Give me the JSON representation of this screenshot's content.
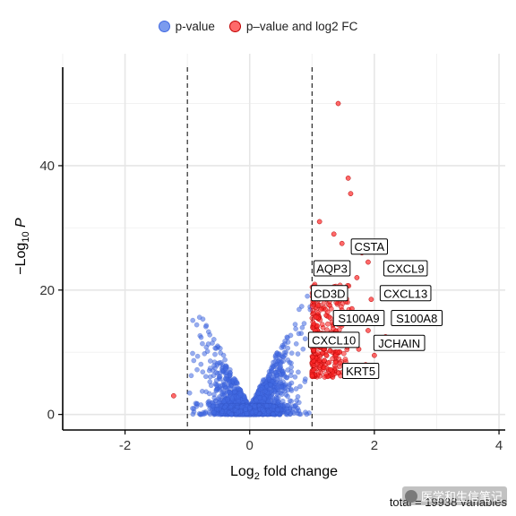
{
  "chart_data": {
    "type": "scatter",
    "title": "",
    "xlabel": "Log2 fold change",
    "ylabel": "-Log10 P",
    "xlim": [
      -3,
      4.1
    ],
    "ylim": [
      -2.5,
      58
    ],
    "x_ticks": [
      -2,
      0,
      2,
      4
    ],
    "y_ticks": [
      0,
      20,
      40
    ],
    "x_tick_labels": [
      "-2",
      "0",
      "2",
      "4"
    ],
    "y_tick_labels": [
      "0",
      "20",
      "40"
    ],
    "fc_cutoff": [
      -1,
      1
    ],
    "grid": true,
    "legend": {
      "position": "top",
      "entries": [
        {
          "label": "p-value",
          "color": "#4169E1"
        },
        {
          "label": "p–value and log2 FC",
          "color": "#FF0000"
        }
      ]
    },
    "series": [
      {
        "name": "p-value",
        "color": "#4169E1",
        "note": "dense cloud of ~19,900 non-significant / low-FC variables forming a V-shape centred at log2FC 0, p up to ~21"
      },
      {
        "name": "p–value and log2 FC",
        "color": "#FF0000",
        "points": [
          {
            "x": 1.42,
            "y": 50.0
          },
          {
            "x": 1.58,
            "y": 38.0
          },
          {
            "x": 1.62,
            "y": 35.5
          },
          {
            "x": 1.12,
            "y": 31.0
          },
          {
            "x": -1.22,
            "y": 3.0
          },
          {
            "x": 1.35,
            "y": 29.0
          },
          {
            "x": 1.48,
            "y": 27.5
          },
          {
            "x": 1.8,
            "y": 26.0
          },
          {
            "x": 1.9,
            "y": 24.5
          },
          {
            "x": 2.3,
            "y": 23.5
          },
          {
            "x": 2.15,
            "y": 20.0
          },
          {
            "x": 1.72,
            "y": 22.0
          },
          {
            "x": 1.95,
            "y": 18.5
          },
          {
            "x": 1.64,
            "y": 17.0
          },
          {
            "x": 2.08,
            "y": 16.0
          },
          {
            "x": 1.9,
            "y": 13.5
          },
          {
            "x": 2.18,
            "y": 12.5
          },
          {
            "x": 1.75,
            "y": 10.5
          },
          {
            "x": 2.0,
            "y": 9.5
          },
          {
            "x": 1.86,
            "y": 8.0
          }
        ]
      }
    ],
    "labels": [
      {
        "text": "CSTA",
        "x": 1.92,
        "y": 27.0
      },
      {
        "text": "AQP3",
        "x": 1.32,
        "y": 23.5
      },
      {
        "text": "CXCL9",
        "x": 2.5,
        "y": 23.5
      },
      {
        "text": "CD3D",
        "x": 1.28,
        "y": 19.5
      },
      {
        "text": "CXCL13",
        "x": 2.5,
        "y": 19.5
      },
      {
        "text": "S100A9",
        "x": 1.75,
        "y": 15.5
      },
      {
        "text": "S100A8",
        "x": 2.68,
        "y": 15.5
      },
      {
        "text": "CXCL10",
        "x": 1.35,
        "y": 12.0
      },
      {
        "text": "JCHAIN",
        "x": 2.4,
        "y": 11.5
      },
      {
        "text": "KRT5",
        "x": 1.78,
        "y": 7.0
      }
    ],
    "caption": "total = 19938 variables"
  },
  "legend_labels": {
    "blue": "p-value",
    "red": "p–value and log2 FC"
  },
  "watermark": "医学和生信笔记"
}
